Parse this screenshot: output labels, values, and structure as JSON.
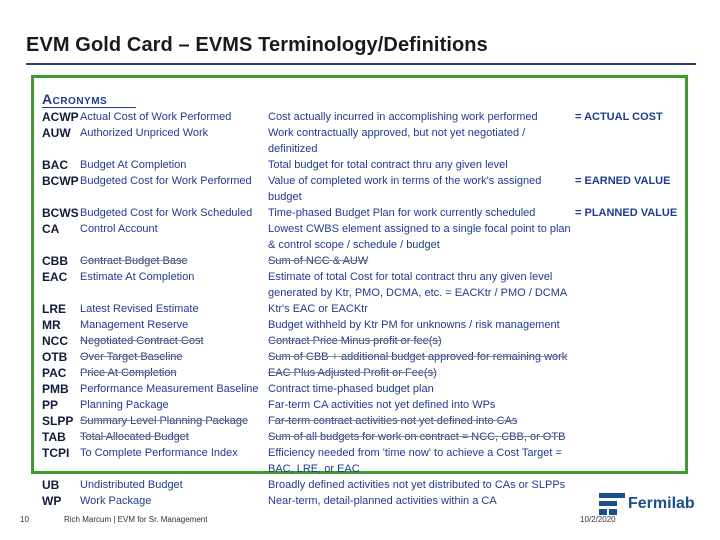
{
  "slide": {
    "title": "EVM Gold Card – EVMS Terminology/Definitions",
    "heading": "Acronyms",
    "rows": [
      {
        "acr": "ACWP",
        "term": "Actual Cost of Work Performed",
        "def": "Cost actually incurred in accomplishing work performed",
        "eq": "= ACTUAL COST"
      },
      {
        "acr": "AUW",
        "term": "Authorized Unpriced Work",
        "def": "Work contractually approved, but not yet negotiated / definitized",
        "eq": ""
      },
      {
        "acr": "BAC",
        "term": "Budget At Completion",
        "def": "Total budget for total contract thru any given level",
        "eq": ""
      },
      {
        "acr": "BCWP",
        "term": "Budgeted Cost for Work Performed",
        "def": "Value of completed work in terms of the work's assigned budget",
        "eq": "= EARNED VALUE"
      },
      {
        "acr": "BCWS",
        "term": "Budgeted Cost for Work Scheduled",
        "def": "Time-phased Budget Plan for work currently scheduled",
        "eq": "= PLANNED VALUE"
      },
      {
        "acr": "CA",
        "term": "Control Account",
        "def": "Lowest CWBS element assigned to a single focal point to plan & control scope / schedule / budget",
        "eq": ""
      },
      {
        "acr": "CBB",
        "term": "Contract Budget Base",
        "def": "Sum of NCC & AUW",
        "eq": ""
      },
      {
        "acr": "EAC",
        "term": "Estimate At Completion",
        "def": "Estimate of total Cost for total contract thru any given level generated by Ktr, PMO, DCMA, etc. = EACKtr / PMO / DCMA",
        "eq": ""
      },
      {
        "acr": "LRE",
        "term": "Latest Revised Estimate",
        "def": "Ktr's EAC or EACKtr",
        "eq": ""
      },
      {
        "acr": "MR",
        "term": "Management Reserve",
        "def": "Budget withheld by Ktr PM for unknowns / risk management",
        "eq": ""
      },
      {
        "acr": "NCC",
        "term": "Negotiated Contract Cost",
        "def": "Contract Price Minus profit or fee(s)",
        "eq": ""
      },
      {
        "acr": "OTB",
        "term": "Over Target Baseline",
        "def": "Sum of CBB + additional budget approved for remaining work",
        "eq": ""
      },
      {
        "acr": "PAC",
        "term": "Price At Completion",
        "def": "EAC Plus Adjusted Profit or Fee(s)",
        "eq": ""
      },
      {
        "acr": "PMB",
        "term": "Performance Measurement Baseline",
        "def": "Contract time-phased budget plan",
        "eq": ""
      },
      {
        "acr": "PP",
        "term": "Planning Package",
        "def": "Far-term CA activities not yet defined into WPs",
        "eq": ""
      },
      {
        "acr": "SLPP",
        "term": "Summary Level Planning Package",
        "def": "Far-term contract activities not yet defined into CAs",
        "eq": ""
      },
      {
        "acr": "TAB",
        "term": "Total Allocated Budget",
        "def": "Sum of all budgets for work on contract = NCC, CBB, or OTB",
        "eq": ""
      },
      {
        "acr": "TCPI",
        "term": "To Complete Performance Index",
        "def": "Efficiency needed from 'time now' to achieve a Cost Target = BAC, LRE, or EAC",
        "eq": ""
      },
      {
        "acr": "UB",
        "term": "Undistributed Budget",
        "def": "Broadly defined activities not yet distributed to CAs or SLPPs",
        "eq": ""
      },
      {
        "acr": "WP",
        "term": "Work Package",
        "def": "Near-term, detail-planned activities within a CA",
        "eq": ""
      }
    ]
  },
  "footer": {
    "page_number": "10",
    "author": "Rich Marcum | EVM for Sr. Management",
    "date": "10/2/2020",
    "logo_text": "Fermilab"
  },
  "colors": {
    "border": "#3f9a2f",
    "text_blue": "#1f3d8c",
    "logo_blue": "#1a4f8a"
  }
}
